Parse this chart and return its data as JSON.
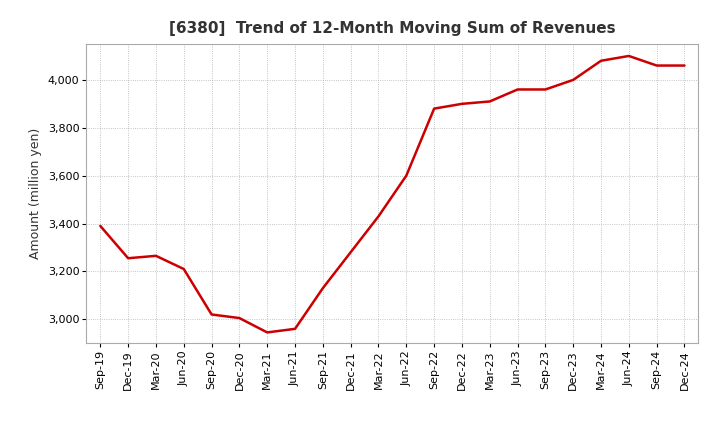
{
  "title": "[6380]  Trend of 12-Month Moving Sum of Revenues",
  "ylabel": "Amount (million yen)",
  "line_color": "#cc0000",
  "background_color": "#ffffff",
  "plot_bg_color": "#ffffff",
  "grid_color": "#aaaaaa",
  "title_color": "#333333",
  "x_labels": [
    "Sep-19",
    "Dec-19",
    "Mar-20",
    "Jun-20",
    "Sep-20",
    "Dec-20",
    "Mar-21",
    "Jun-21",
    "Sep-21",
    "Dec-21",
    "Mar-22",
    "Jun-22",
    "Sep-22",
    "Dec-22",
    "Mar-23",
    "Jun-23",
    "Sep-23",
    "Dec-23",
    "Mar-24",
    "Jun-24",
    "Sep-24",
    "Dec-24"
  ],
  "values": [
    3390,
    3255,
    3265,
    3210,
    3020,
    3005,
    2945,
    2960,
    3130,
    3280,
    3430,
    3600,
    3880,
    3900,
    3910,
    3960,
    3960,
    4000,
    4080,
    4100,
    4060,
    4060
  ],
  "ylim": [
    2900,
    4150
  ],
  "yticks": [
    3000,
    3200,
    3400,
    3600,
    3800,
    4000
  ],
  "line_width": 1.8,
  "title_fontsize": 11,
  "tick_fontsize": 8,
  "ylabel_fontsize": 9,
  "figsize": [
    7.2,
    4.4
  ],
  "dpi": 100
}
